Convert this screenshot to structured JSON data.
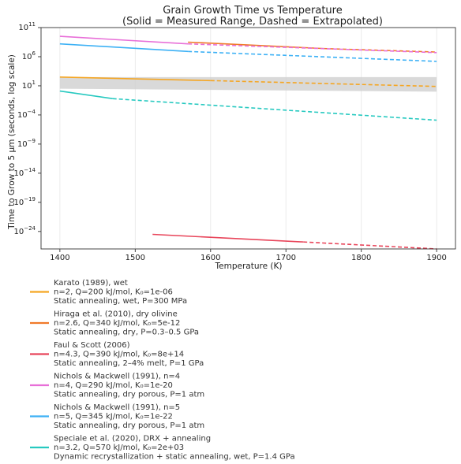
{
  "chart_data": {
    "type": "line",
    "title": "Grain Growth Time vs Temperature",
    "subtitle": "(Solid = Measured Range, Dashed = Extrapolated)",
    "xlabel": "Temperature (K)",
    "ylabel": "Time to Grow to 5 μm (seconds, log scale)",
    "xlim": [
      1375,
      1925
    ],
    "ylim_log10": [
      -27,
      11
    ],
    "yscale": "log",
    "xticks": [
      1400,
      1500,
      1600,
      1700,
      1800,
      1900
    ],
    "yticks": [
      {
        "exp": 11,
        "label": "11"
      },
      {
        "exp": 6,
        "label": "6"
      },
      {
        "exp": 1,
        "label": "1"
      },
      {
        "exp": -4,
        "label": "−4"
      },
      {
        "exp": -9,
        "label": "−9"
      },
      {
        "exp": -14,
        "label": "−14"
      },
      {
        "exp": -19,
        "label": "−19"
      },
      {
        "exp": -24,
        "label": "−24"
      }
    ],
    "grid": "vertical",
    "band": {
      "x": [
        1400,
        1900
      ],
      "log10_lower": [
        0.5,
        0.0
      ],
      "log10_upper": [
        2.5,
        2.5
      ],
      "color": "#d0d0d0"
    },
    "series": [
      {
        "id": "karato",
        "color": "#f5a623",
        "solid": {
          "x": [
            1400,
            1600
          ],
          "log10_y": [
            2.5,
            1.9
          ]
        },
        "dashed": {
          "x": [
            1600,
            1900
          ],
          "log10_y": [
            1.9,
            0.9
          ]
        },
        "legend": [
          "Karato (1989), wet",
          "n=2, Q=200 kJ/mol, K₀=1e-06",
          "Static annealing, wet, P=300 MPa"
        ]
      },
      {
        "id": "hiraga",
        "color": "#f07a2a",
        "solid": {
          "x": [
            1570,
            1750
          ],
          "log10_y": [
            8.5,
            7.4
          ]
        },
        "dashed": {
          "x": [
            1750,
            1900
          ],
          "log10_y": [
            7.4,
            6.8
          ]
        },
        "legend": [
          "Hiraga et al. (2010), dry olivine",
          "n=2.6, Q=340 kJ/mol, K₀=5e-12",
          "Static annealing, dry, P=0.3–0.5 GPa"
        ]
      },
      {
        "id": "faul",
        "color": "#e8455a",
        "solid": {
          "x": [
            1523,
            1723
          ],
          "log10_y": [
            -24.5,
            -25.8
          ]
        },
        "dashed": {
          "x": [
            1723,
            1900
          ],
          "log10_y": [
            -25.8,
            -27.0
          ]
        },
        "legend": [
          "Faul & Scott (2006)",
          "n=4.3, Q=390 kJ/mol, K₀=8e+14",
          "Static annealing, 2–4% melt, P=1 GPa"
        ]
      },
      {
        "id": "nichols4",
        "color": "#e86fd8",
        "solid": {
          "x": [
            1400,
            1570
          ],
          "log10_y": [
            9.5,
            8.2
          ]
        },
        "dashed": {
          "x": [
            1570,
            1900
          ],
          "log10_y": [
            8.2,
            6.7
          ]
        },
        "legend": [
          "Nichols & Mackwell (1991), n=4",
          "n=4, Q=290 kJ/mol, K₀=1e-20",
          "Static annealing, dry porous, P=1 atm"
        ]
      },
      {
        "id": "nichols5",
        "color": "#3db1f5",
        "solid": {
          "x": [
            1400,
            1570
          ],
          "log10_y": [
            8.2,
            6.9
          ]
        },
        "dashed": {
          "x": [
            1570,
            1900
          ],
          "log10_y": [
            6.9,
            5.2
          ]
        },
        "legend": [
          "Nichols & Mackwell (1991), n=5",
          "n=5, Q=345 kJ/mol, K₀=1e-22",
          "Static annealing, dry porous, P=1 atm"
        ]
      },
      {
        "id": "speciale",
        "color": "#27c9c0",
        "solid": {
          "x": [
            1400,
            1470
          ],
          "log10_y": [
            0.1,
            -1.2
          ]
        },
        "dashed": {
          "x": [
            1470,
            1900
          ],
          "log10_y": [
            -1.2,
            -4.9
          ]
        },
        "legend": [
          "Speciale et al. (2020), DRX + annealing",
          "n=3.2, Q=570 kJ/mol, K₀=2e+03",
          "Dynamic recrystallization + static annealing, wet, P=1.4 GPa"
        ]
      }
    ]
  }
}
